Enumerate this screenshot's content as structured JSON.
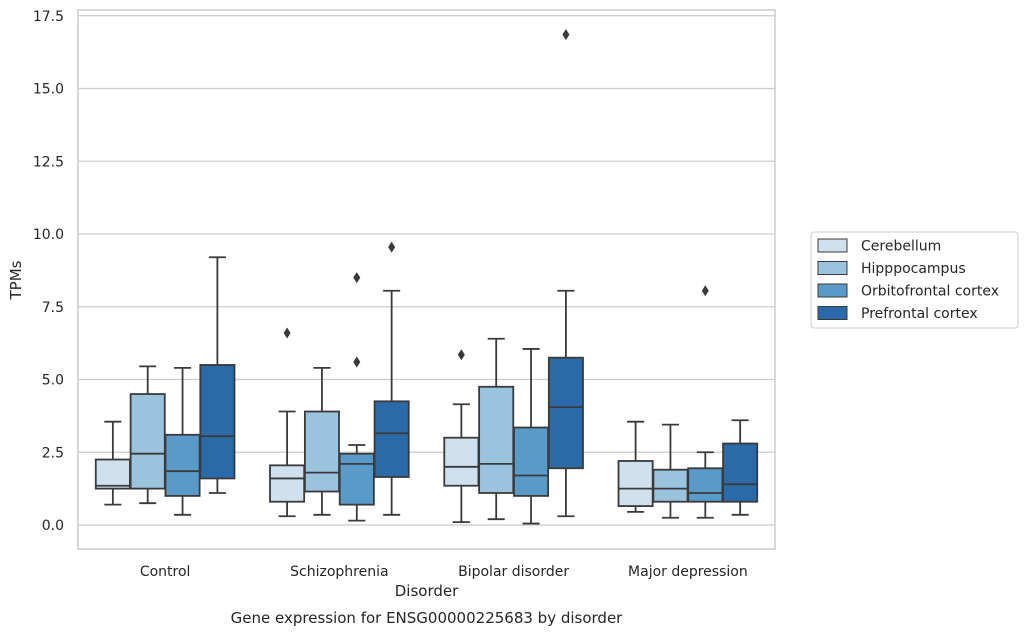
{
  "chart_data": {
    "type": "box",
    "title": "",
    "caption": "Gene expression for ENSG00000225683 by disorder",
    "xlabel": "Disorder",
    "ylabel": "TPMs",
    "ylim": [
      -0.8,
      17.7
    ],
    "yticks": [
      "0.0",
      "2.5",
      "5.0",
      "7.5",
      "10.0",
      "12.5",
      "15.0",
      "17.5"
    ],
    "ytick_values": [
      0,
      2.5,
      5,
      7.5,
      10,
      12.5,
      15,
      17.5
    ],
    "grid": "horizontal",
    "legend_position": "right",
    "categories": [
      "Control",
      "Schizophrenia",
      "Bipolar disorder",
      "Major depression"
    ],
    "series": [
      {
        "name": "Cerebellum",
        "color": "#cfe0ef",
        "boxes": [
          {
            "whisker_low": 0.7,
            "q1": 1.25,
            "median": 1.35,
            "q3": 2.25,
            "whisker_high": 3.55,
            "outliers": []
          },
          {
            "whisker_low": 0.3,
            "q1": 0.8,
            "median": 1.6,
            "q3": 2.05,
            "whisker_high": 3.9,
            "outliers": [
              6.6
            ]
          },
          {
            "whisker_low": 0.1,
            "q1": 1.35,
            "median": 2.0,
            "q3": 3.0,
            "whisker_high": 4.15,
            "outliers": [
              5.85
            ]
          },
          {
            "whisker_low": 0.45,
            "q1": 0.65,
            "median": 1.25,
            "q3": 2.2,
            "whisker_high": 3.55,
            "outliers": []
          }
        ]
      },
      {
        "name": "Hipppocampus",
        "color": "#9ac3de",
        "boxes": [
          {
            "whisker_low": 0.75,
            "q1": 1.25,
            "median": 2.45,
            "q3": 4.5,
            "whisker_high": 5.45,
            "outliers": []
          },
          {
            "whisker_low": 0.35,
            "q1": 1.15,
            "median": 1.8,
            "q3": 3.9,
            "whisker_high": 5.4,
            "outliers": []
          },
          {
            "whisker_low": 0.2,
            "q1": 1.1,
            "median": 2.1,
            "q3": 4.75,
            "whisker_high": 6.4,
            "outliers": []
          },
          {
            "whisker_low": 0.25,
            "q1": 0.8,
            "median": 1.25,
            "q3": 1.9,
            "whisker_high": 3.45,
            "outliers": []
          }
        ]
      },
      {
        "name": "Orbitofrontal cortex",
        "color": "#5a9ac8",
        "boxes": [
          {
            "whisker_low": 0.35,
            "q1": 1.0,
            "median": 1.85,
            "q3": 3.1,
            "whisker_high": 5.4,
            "outliers": []
          },
          {
            "whisker_low": 0.15,
            "q1": 0.7,
            "median": 2.1,
            "q3": 2.45,
            "whisker_high": 2.75,
            "outliers": [
              5.6,
              8.5
            ]
          },
          {
            "whisker_low": 0.05,
            "q1": 1.0,
            "median": 1.7,
            "q3": 3.35,
            "whisker_high": 6.05,
            "outliers": []
          },
          {
            "whisker_low": 0.25,
            "q1": 0.8,
            "median": 1.1,
            "q3": 1.95,
            "whisker_high": 2.5,
            "outliers": [
              8.05
            ]
          }
        ]
      },
      {
        "name": "Prefrontal cortex",
        "color": "#2b6aa9",
        "boxes": [
          {
            "whisker_low": 1.1,
            "q1": 1.6,
            "median": 3.05,
            "q3": 5.5,
            "whisker_high": 9.2,
            "outliers": []
          },
          {
            "whisker_low": 0.35,
            "q1": 1.65,
            "median": 3.15,
            "q3": 4.25,
            "whisker_high": 8.05,
            "outliers": [
              9.55
            ]
          },
          {
            "whisker_low": 0.3,
            "q1": 1.95,
            "median": 4.05,
            "q3": 5.75,
            "whisker_high": 8.05,
            "outliers": [
              16.85
            ]
          },
          {
            "whisker_low": 0.35,
            "q1": 0.8,
            "median": 1.4,
            "q3": 2.8,
            "whisker_high": 3.6,
            "outliers": []
          }
        ]
      }
    ]
  }
}
